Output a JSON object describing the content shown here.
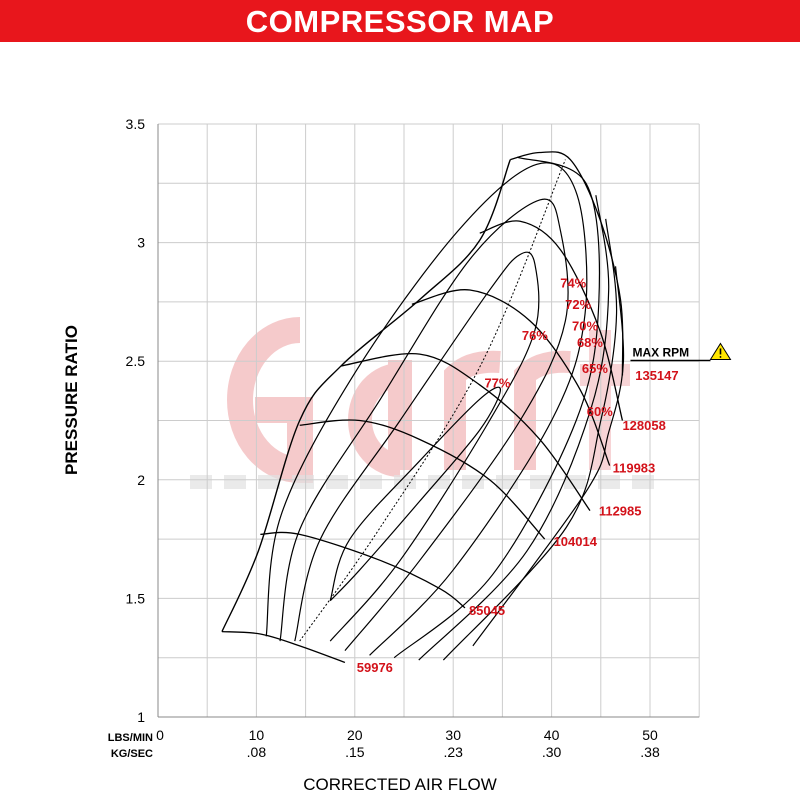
{
  "title": "COMPRESSOR MAP",
  "watermark": {
    "brand": "Garrett",
    "tagline": "ADVANCING MOTION"
  },
  "chart_data": {
    "type": "line",
    "title": "COMPRESSOR MAP",
    "xlabel": "CORRECTED AIR FLOW",
    "ylabel": "PRESSURE RATIO",
    "x_unit_primary": "LBS/MIN",
    "x_unit_secondary": "KG/SEC",
    "xlim": [
      0,
      55
    ],
    "ylim": [
      1,
      3.5
    ],
    "grid": true,
    "x_ticks": [
      0,
      10,
      20,
      30,
      40,
      50
    ],
    "x_tick_labels": [
      "0",
      "10",
      "20",
      "30",
      "40",
      "50"
    ],
    "x_secondary_tick_labels": [
      "",
      ".08",
      ".15",
      ".23",
      ".30",
      ".38"
    ],
    "y_ticks": [
      1,
      1.5,
      2,
      2.5,
      3,
      3.5
    ],
    "y_tick_labels": [
      "1",
      "1.5",
      "2",
      "2.5",
      "3",
      "3.5"
    ],
    "surge_line": [
      [
        6.5,
        1.36
      ],
      [
        10.2,
        1.7
      ],
      [
        14.4,
        2.25
      ],
      [
        18.6,
        2.48
      ],
      [
        26.6,
        2.76
      ],
      [
        32.7,
        3.01
      ],
      [
        35.8,
        3.35
      ]
    ],
    "speed_lines": [
      {
        "label": "59976",
        "points": [
          [
            6.5,
            1.36
          ],
          [
            10.4,
            1.35
          ],
          [
            14.4,
            1.3
          ],
          [
            19.0,
            1.23
          ]
        ],
        "label_at": [
          20.2,
          1.19
        ]
      },
      {
        "label": "85045",
        "points": [
          [
            10.4,
            1.77
          ],
          [
            14.4,
            1.77
          ],
          [
            22.6,
            1.66
          ],
          [
            28.7,
            1.54
          ],
          [
            31.2,
            1.46
          ]
        ],
        "label_at": [
          31.6,
          1.43
        ]
      },
      {
        "label": "104014",
        "points": [
          [
            14.4,
            2.23
          ],
          [
            20.5,
            2.25
          ],
          [
            26.6,
            2.17
          ],
          [
            33.7,
            2.0
          ],
          [
            39.3,
            1.75
          ]
        ],
        "label_at": [
          40.2,
          1.72
        ]
      },
      {
        "label": "112985",
        "points": [
          [
            18.6,
            2.48
          ],
          [
            26.6,
            2.53
          ],
          [
            32.7,
            2.4
          ],
          [
            38.8,
            2.17
          ],
          [
            43.9,
            1.87
          ]
        ],
        "label_at": [
          44.8,
          1.85
        ]
      },
      {
        "label": "119983",
        "points": [
          [
            25.8,
            2.74
          ],
          [
            31.7,
            2.8
          ],
          [
            37.8,
            2.67
          ],
          [
            42.9,
            2.38
          ],
          [
            45.9,
            2.06
          ]
        ],
        "label_at": [
          46.2,
          2.03
        ]
      },
      {
        "label": "128058",
        "points": [
          [
            32.7,
            3.04
          ],
          [
            36.8,
            3.09
          ],
          [
            40.9,
            2.97
          ],
          [
            44.9,
            2.63
          ],
          [
            47.2,
            2.25
          ]
        ],
        "label_at": [
          47.2,
          2.21
        ]
      },
      {
        "label": "135147",
        "points": [
          [
            35.8,
            3.35
          ],
          [
            38.8,
            3.38
          ],
          [
            41.9,
            3.35
          ],
          [
            44.9,
            3.1
          ],
          [
            47.0,
            2.76
          ],
          [
            47.2,
            2.44
          ]
        ],
        "label_at": [
          48.5,
          2.42
        ]
      }
    ],
    "efficiency_islands": [
      {
        "label": "77%",
        "points": [
          [
            17.5,
            1.49
          ],
          [
            19.5,
            1.75
          ],
          [
            26.6,
            2.08
          ],
          [
            32.7,
            2.34
          ],
          [
            34.8,
            2.38
          ],
          [
            32.7,
            2.21
          ],
          [
            26.6,
            1.91
          ],
          [
            20.5,
            1.62
          ],
          [
            17.5,
            1.49
          ]
        ],
        "label_at": [
          34.5,
          2.39
        ]
      },
      {
        "label": "76%",
        "points": [
          [
            13.9,
            1.32
          ],
          [
            16.5,
            1.75
          ],
          [
            24.6,
            2.25
          ],
          [
            33.7,
            2.8
          ],
          [
            36.8,
            2.95
          ],
          [
            38.3,
            2.91
          ],
          [
            38.3,
            2.63
          ],
          [
            33.7,
            2.25
          ],
          [
            24.6,
            1.66
          ],
          [
            17.5,
            1.32
          ]
        ],
        "label_at": [
          38.3,
          2.59
        ]
      },
      {
        "label": "74%",
        "points": [
          [
            12.4,
            1.32
          ],
          [
            14.4,
            1.79
          ],
          [
            22.6,
            2.34
          ],
          [
            31.7,
            2.93
          ],
          [
            38.8,
            3.18
          ],
          [
            40.9,
            3.05
          ],
          [
            41.4,
            2.67
          ],
          [
            36.8,
            2.25
          ],
          [
            26.6,
            1.66
          ],
          [
            19.0,
            1.28
          ]
        ],
        "label_at": [
          42.2,
          2.81
        ]
      },
      {
        "label": "72%",
        "points": [
          [
            11.0,
            1.34
          ],
          [
            12.5,
            1.85
          ],
          [
            20.0,
            2.45
          ],
          [
            30.5,
            3.05
          ],
          [
            38.5,
            3.33
          ],
          [
            42.6,
            3.2
          ],
          [
            43.4,
            2.7
          ],
          [
            40.0,
            2.25
          ],
          [
            30.0,
            1.62
          ],
          [
            21.5,
            1.26
          ]
        ],
        "label_at": [
          42.7,
          2.72
        ]
      },
      {
        "label": "70%",
        "points": [
          [
            36.5,
            3.36
          ],
          [
            43.5,
            3.25
          ],
          [
            44.8,
            2.75
          ],
          [
            42.5,
            2.25
          ],
          [
            34.0,
            1.6
          ],
          [
            24.0,
            1.25
          ]
        ],
        "label_at": [
          43.4,
          2.63
        ]
      },
      {
        "label": "68%",
        "points": [
          [
            44.5,
            3.2
          ],
          [
            45.8,
            2.8
          ],
          [
            44.0,
            2.3
          ],
          [
            37.5,
            1.7
          ],
          [
            26.5,
            1.24
          ]
        ],
        "label_at": [
          43.9,
          2.56
        ]
      },
      {
        "label": "65%",
        "points": [
          [
            45.5,
            3.1
          ],
          [
            46.6,
            2.7
          ],
          [
            45.0,
            2.25
          ],
          [
            41.5,
            1.8
          ],
          [
            29.0,
            1.24
          ]
        ],
        "label_at": [
          44.4,
          2.45
        ]
      },
      {
        "label": "60%",
        "points": [
          [
            46.5,
            2.9
          ],
          [
            47.3,
            2.5
          ],
          [
            45.8,
            2.2
          ],
          [
            43.5,
            1.95
          ],
          [
            32.0,
            1.3
          ]
        ],
        "label_at": [
          44.9,
          2.27
        ]
      }
    ],
    "max_efficiency_line": [
      [
        14.4,
        1.32
      ],
      [
        22.6,
        1.8
      ],
      [
        33.0,
        2.5
      ],
      [
        41.4,
        3.35
      ]
    ],
    "annotations": [
      {
        "text": "MAX RPM",
        "icon": "warning-triangle-icon",
        "at": [
          47.0,
          2.52
        ]
      }
    ],
    "colors": {
      "banner": "#e8161c",
      "label": "#d3121a",
      "line": "#000000",
      "grid": "#cccccc",
      "watermark": "#f2b8ba"
    }
  }
}
